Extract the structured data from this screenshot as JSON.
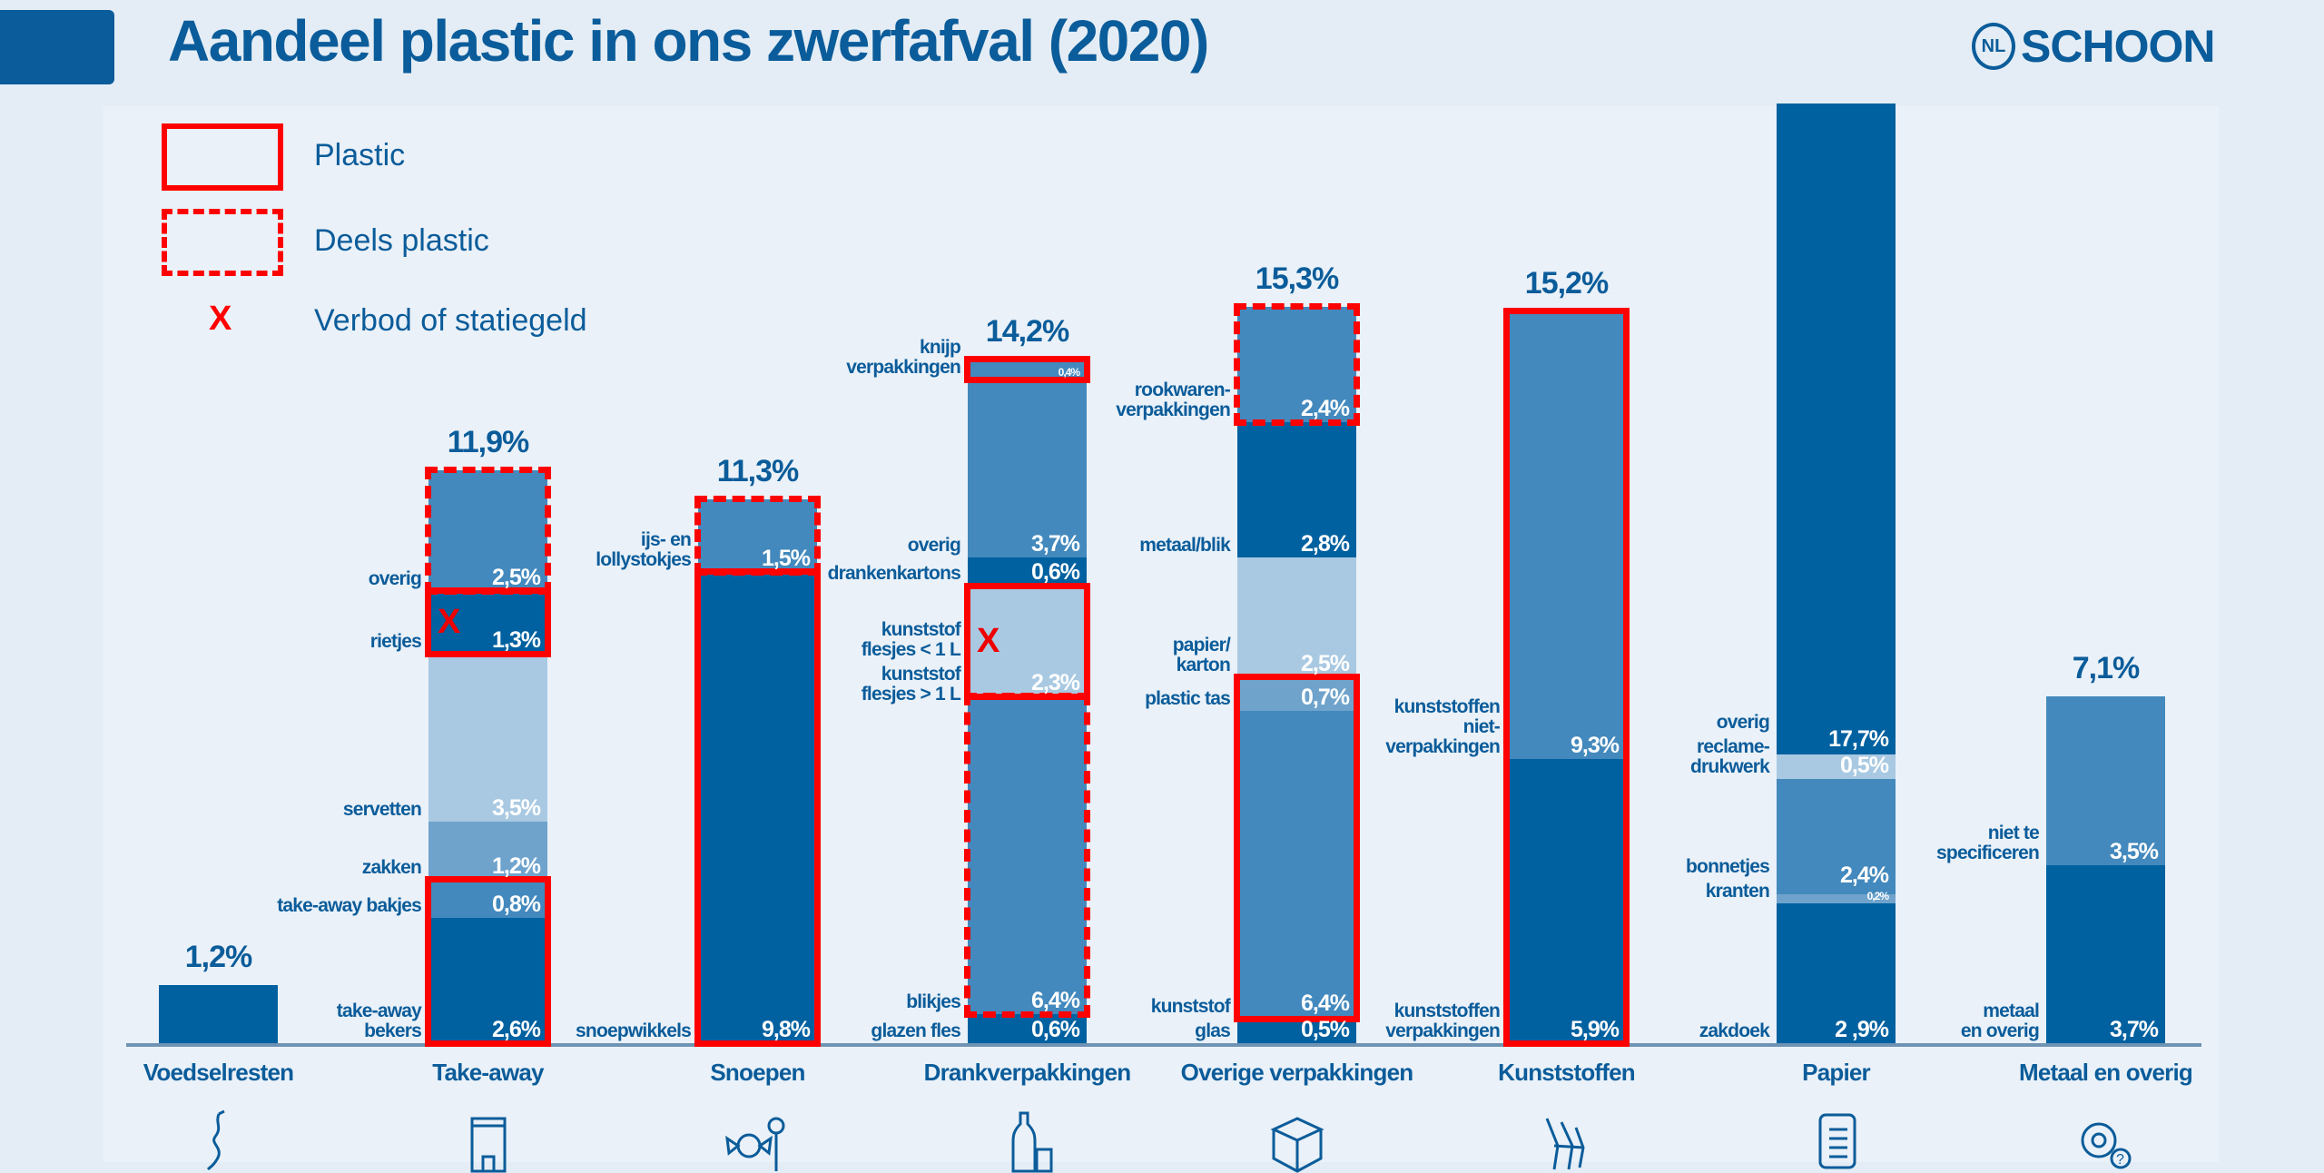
{
  "title": "Aandeel plastic in ons zwerfafval (2020)",
  "logo": {
    "ring": "NL",
    "word": "SCHOON"
  },
  "legend": [
    {
      "style": "plastic",
      "label": "Plastic"
    },
    {
      "style": "partial",
      "label": "Deels plastic"
    },
    {
      "style": "banned",
      "symbol": "X",
      "label": "Verbod of statiegeld"
    }
  ],
  "colors": {
    "dark": "#0061a0",
    "mid": "#4389bd",
    "midlight": "#6fa3cc",
    "light": "#a9c9e2",
    "marker": "#ff0000",
    "text": "#0b5c9a"
  },
  "chart_data": {
    "type": "bar",
    "stacked": true,
    "unit": "%",
    "categories": [
      "Voedselresten",
      "Take-away",
      "Snoepen",
      "Drankverpakkingen",
      "Overige verpakkingen",
      "Kunststoffen",
      "Papier",
      "Metaal en overig"
    ],
    "bars": [
      {
        "category": "Voedselresten",
        "icon": "apple-core-icon",
        "total": "1,2%",
        "segments": [
          {
            "label": "",
            "value": 1.2,
            "value_text": "",
            "color": "dark"
          }
        ],
        "boxes": []
      },
      {
        "category": "Take-away",
        "icon": "takeaway-bag-icon",
        "total": "11,9%",
        "segments": [
          {
            "label": "take-away\nbekers",
            "value": 2.6,
            "value_text": "2,6%",
            "color": "dark"
          },
          {
            "label": "take-away bakjes",
            "value": 0.8,
            "value_text": "0,8%",
            "color": "mid"
          },
          {
            "label": "zakken",
            "value": 1.2,
            "value_text": "1,2%",
            "color": "midlight"
          },
          {
            "label": "servetten",
            "value": 3.5,
            "value_text": "3,5%",
            "color": "light"
          },
          {
            "label": "rietjes",
            "value": 1.3,
            "value_text": "1,3%",
            "color": "dark",
            "banned": true
          },
          {
            "label": "overig",
            "value": 2.5,
            "value_text": "2,5%",
            "color": "mid"
          }
        ],
        "boxes": [
          {
            "from": 0,
            "to": 1,
            "style": "plastic"
          },
          {
            "from": 4,
            "to": 4,
            "style": "plastic"
          },
          {
            "from": 5,
            "to": 5,
            "style": "partial"
          }
        ]
      },
      {
        "category": "Snoepen",
        "icon": "candy-icon",
        "total": "11,3%",
        "segments": [
          {
            "label": "snoepwikkels",
            "value": 9.8,
            "value_text": "9,8%",
            "color": "dark"
          },
          {
            "label": "ijs- en\nlollystokjes",
            "value": 1.5,
            "value_text": "1,5%",
            "color": "mid"
          }
        ],
        "boxes": [
          {
            "from": 0,
            "to": 0,
            "style": "plastic"
          },
          {
            "from": 1,
            "to": 1,
            "style": "partial"
          }
        ]
      },
      {
        "category": "Drankverpakkingen",
        "icon": "bottle-can-icon",
        "total": "14,2%",
        "segments": [
          {
            "label": "glazen fles",
            "value": 0.6,
            "value_text": "0,6%",
            "color": "dark"
          },
          {
            "label": "blikjes",
            "value": 6.4,
            "value_text": "6,4%",
            "color": "mid"
          },
          {
            "label": "kunststof\nflesjes > 1 L",
            "value": 0.2,
            "value_text": "",
            "color": "mid"
          },
          {
            "label": "kunststof\nflesjes < 1 L",
            "value": 2.3,
            "value_text": "2,3%",
            "color": "light",
            "banned": true
          },
          {
            "label": "drankenkartons",
            "value": 0.6,
            "value_text": "0,6%",
            "color": "dark"
          },
          {
            "label": "overig",
            "value": 3.7,
            "value_text": "3,7%",
            "color": "mid"
          },
          {
            "label": "knijp\nverpakkingen",
            "value": 0.4,
            "value_text": "0,4%",
            "color": "mid",
            "small": true
          }
        ],
        "boxes": [
          {
            "from": 1,
            "to": 2,
            "style": "partial"
          },
          {
            "from": 3,
            "to": 3,
            "style": "plastic"
          },
          {
            "from": 6,
            "to": 6,
            "style": "plastic"
          }
        ]
      },
      {
        "category": "Overige verpakkingen",
        "icon": "box-icon",
        "total": "15,3%",
        "segments": [
          {
            "label": "glas",
            "value": 0.5,
            "value_text": "0,5%",
            "color": "dark"
          },
          {
            "label": "kunststof",
            "value": 6.4,
            "value_text": "6,4%",
            "color": "mid"
          },
          {
            "label": "plastic tas",
            "value": 0.7,
            "value_text": "0,7%",
            "color": "midlight"
          },
          {
            "label": "papier/\nkarton",
            "value": 2.5,
            "value_text": "2,5%",
            "color": "light"
          },
          {
            "label": "metaal/blik",
            "value": 2.8,
            "value_text": "2,8%",
            "color": "dark"
          },
          {
            "label": "rookwaren-\nverpakkingen",
            "value": 2.4,
            "value_text": "2,4%",
            "color": "mid"
          }
        ],
        "boxes": [
          {
            "from": 1,
            "to": 2,
            "style": "plastic"
          },
          {
            "from": 5,
            "to": 5,
            "style": "partial"
          }
        ]
      },
      {
        "category": "Kunststoffen",
        "icon": "hands-icon",
        "total": "15,2%",
        "segments": [
          {
            "label": "kunststoffen\nverpakkingen",
            "value": 5.9,
            "value_text": "5,9%",
            "color": "dark"
          },
          {
            "label": "kunststoffen\nniet-\nverpakkingen",
            "value": 9.3,
            "value_text": "9,3%",
            "color": "mid"
          }
        ],
        "boxes": [
          {
            "from": 0,
            "to": 1,
            "style": "plastic"
          }
        ]
      },
      {
        "category": "Papier",
        "icon": "paper-icon",
        "total": "",
        "segments": [
          {
            "label": "zakdoek",
            "value": 2.9,
            "value_text": "2 ,9%",
            "color": "dark"
          },
          {
            "label": "kranten",
            "value": 0.2,
            "value_text": "0,2%",
            "color": "midlight",
            "small": true
          },
          {
            "label": "bonnetjes",
            "value": 2.4,
            "value_text": "2,4%",
            "color": "mid"
          },
          {
            "label": "reclame-\ndrukwerk",
            "value": 0.5,
            "value_text": "0,5%",
            "color": "light"
          },
          {
            "label": "overig",
            "value": 17.7,
            "value_text": "17,7%",
            "color": "dark"
          }
        ],
        "boxes": []
      },
      {
        "category": "Metaal en overig",
        "icon": "gear-icon",
        "total": "7,1%",
        "segments": [
          {
            "label": "metaal\nen overig",
            "value": 3.7,
            "value_text": "3,7%",
            "color": "dark"
          },
          {
            "label": "niet te\nspecificeren",
            "value": 3.5,
            "value_text": "3,5%",
            "color": "mid"
          }
        ],
        "boxes": []
      }
    ]
  }
}
